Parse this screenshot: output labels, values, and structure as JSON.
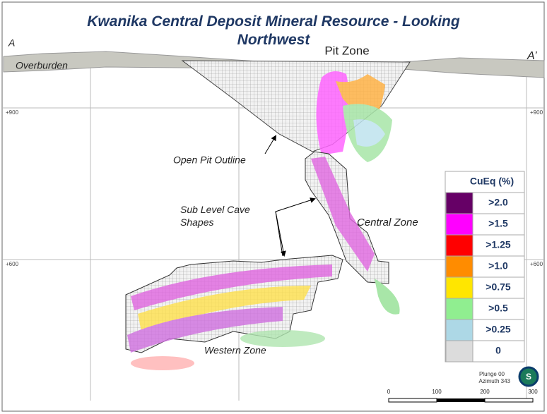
{
  "header": {
    "title": "Kwanika Central Deposit Mineral Resource - Looking Northwest"
  },
  "section": {
    "start_label": "A",
    "end_label": "A’",
    "overburden": "Overburden",
    "pit_zone": "Pit Zone",
    "elevations": {
      "upper_left": "+900",
      "upper_right": "+900",
      "lower_left": "+600",
      "lower_right": "+600"
    }
  },
  "annotations": {
    "open_pit": "Open Pit Outline",
    "sub_level": "Sub Level Cave Shapes",
    "central_zone": "Central Zone",
    "western_zone": "Western Zone"
  },
  "legend": {
    "title": "CuEq (%)",
    "items": [
      {
        "label": ">2.0",
        "color": "#660066"
      },
      {
        "label": ">1.5",
        "color": "#ff00ff"
      },
      {
        "label": ">1.25",
        "color": "#ff0000"
      },
      {
        "label": ">1.0",
        "color": "#ff8c00"
      },
      {
        "label": ">0.75",
        "color": "#ffe600"
      },
      {
        "label": ">0.5",
        "color": "#90ee90"
      },
      {
        "label": ">0.25",
        "color": "#add8e6"
      },
      {
        "label": "0",
        "color": "#dcdcdc"
      }
    ]
  },
  "view": {
    "plunge": "Plunge 00",
    "azimuth": "Azimuth 343",
    "logo": "S"
  },
  "scale_bar": {
    "labels": [
      "0",
      "100",
      "200",
      "300"
    ]
  }
}
